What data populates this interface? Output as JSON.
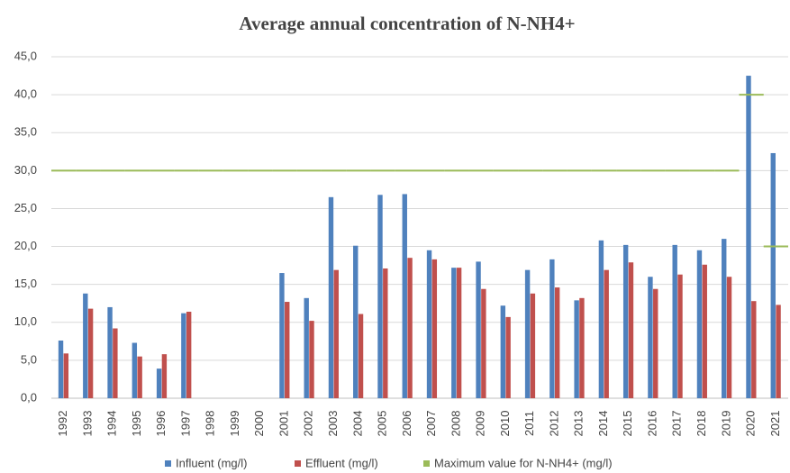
{
  "chart_data": {
    "type": "bar",
    "title": "Average annual concentration of N-NH4+",
    "categories": [
      "1992",
      "1993",
      "1994",
      "1995",
      "1996",
      "1997",
      "1998",
      "1999",
      "2000",
      "2001",
      "2002",
      "2003",
      "2004",
      "2005",
      "2006",
      "2007",
      "2008",
      "2009",
      "2010",
      "2011",
      "2012",
      "2013",
      "2014",
      "2015",
      "2016",
      "2017",
      "2018",
      "2019",
      "2020",
      "2021"
    ],
    "series": [
      {
        "name": "Influent (mg/l)",
        "color": "#4f81bd",
        "kind": "bar",
        "values": [
          7.6,
          13.8,
          12.0,
          7.3,
          3.9,
          11.2,
          null,
          null,
          null,
          16.5,
          13.2,
          26.5,
          20.1,
          26.8,
          26.9,
          19.5,
          17.2,
          18.0,
          12.2,
          16.9,
          18.3,
          12.9,
          20.8,
          20.2,
          16.0,
          20.2,
          19.5,
          21.0,
          42.5,
          32.3
        ]
      },
      {
        "name": "Effluent (mg/l)",
        "color": "#c0504d",
        "kind": "bar",
        "values": [
          5.9,
          11.8,
          9.2,
          5.5,
          5.8,
          11.4,
          null,
          null,
          null,
          12.7,
          10.2,
          16.9,
          11.1,
          17.1,
          18.5,
          18.3,
          17.2,
          14.4,
          10.7,
          13.8,
          14.6,
          13.2,
          16.9,
          17.9,
          14.4,
          16.3,
          17.6,
          16.0,
          12.8,
          12.3
        ]
      },
      {
        "name": "Maximum value for N-NH4+ (mg/l)",
        "color": "#9bbb59",
        "kind": "step",
        "values": [
          30,
          30,
          30,
          30,
          30,
          30,
          30,
          30,
          30,
          30,
          30,
          30,
          30,
          30,
          30,
          30,
          30,
          30,
          30,
          30,
          30,
          30,
          30,
          30,
          30,
          30,
          30,
          30,
          40,
          20
        ]
      }
    ],
    "ylim": [
      0,
      45
    ],
    "yticks": [
      {
        "value": 0,
        "label": "0,0"
      },
      {
        "value": 5,
        "label": "5,0"
      },
      {
        "value": 10,
        "label": "10,0"
      },
      {
        "value": 15,
        "label": "15,0"
      },
      {
        "value": 20,
        "label": "20,0"
      },
      {
        "value": 25,
        "label": "25,0"
      },
      {
        "value": 30,
        "label": "30,0"
      },
      {
        "value": 35,
        "label": "35,0"
      },
      {
        "value": 40,
        "label": "40,0"
      },
      {
        "value": 45,
        "label": "45,0"
      }
    ],
    "grid": true
  }
}
